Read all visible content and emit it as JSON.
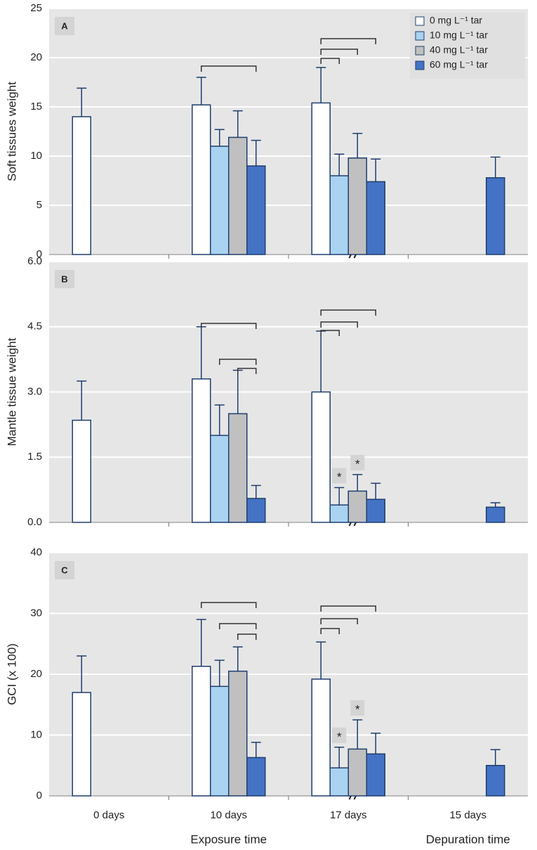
{
  "chart_data": [
    {
      "type": "bar",
      "panel_label": "A",
      "y_label": "Soft tissues weight",
      "legend": "top-right",
      "grid": true,
      "categories": [
        "0 days",
        "10 days",
        "17 days",
        "15 days"
      ],
      "ylim": [
        0,
        25
      ],
      "yticks": [
        0,
        5,
        10,
        15,
        20,
        25
      ],
      "series": [
        {
          "name": "0 mg L⁻¹ tar",
          "color": "#ffffff",
          "values": [
            14,
            15.2,
            15.4,
            null
          ],
          "errors": [
            2.9,
            2.8,
            3.6,
            null
          ]
        },
        {
          "name": "10 mg L⁻¹ tar",
          "color": "#a9d3f1",
          "values": [
            null,
            11.0,
            8.0,
            null
          ],
          "errors": [
            null,
            1.7,
            2.2,
            null
          ]
        },
        {
          "name": "40 mg L⁻¹ tar",
          "color": "#c0c0c0",
          "values": [
            null,
            11.9,
            9.8,
            null
          ],
          "errors": [
            null,
            2.7,
            2.5,
            null
          ]
        },
        {
          "name": "60 mg L⁻¹ tar",
          "color": "#4472c4",
          "values": [
            null,
            9.0,
            7.4,
            7.8
          ],
          "errors": [
            null,
            2.6,
            2.3,
            2.1
          ]
        }
      ]
    },
    {
      "type": "bar",
      "panel_label": "B",
      "y_label": "Mantle tissue weight",
      "grid": true,
      "categories": [
        "0 days",
        "10 days",
        "17 days",
        "15 days"
      ],
      "ylim": [
        0,
        6
      ],
      "yticks": [
        {
          "value": 0,
          "label": "0.0"
        },
        1.5,
        {
          "value": 3,
          "label": "3.0"
        },
        4.5,
        {
          "value": 6,
          "label": "6.0"
        }
      ],
      "series": [
        {
          "name": "0 mg L⁻¹ tar",
          "color": "#ffffff",
          "values": [
            2.35,
            3.3,
            3.0,
            null
          ],
          "errors": [
            0.9,
            1.2,
            1.4,
            null
          ]
        },
        {
          "name": "10 mg L⁻¹ tar",
          "color": "#a9d3f1",
          "values": [
            null,
            2.0,
            0.4,
            null
          ],
          "errors": [
            null,
            0.7,
            0.4,
            null
          ],
          "significance": [
            null,
            null,
            "*",
            null
          ]
        },
        {
          "name": "40 mg L⁻¹ tar",
          "color": "#c0c0c0",
          "values": [
            null,
            2.5,
            0.72,
            null
          ],
          "errors": [
            null,
            1.0,
            0.38,
            null
          ],
          "significance": [
            null,
            null,
            "*",
            null
          ]
        },
        {
          "name": "60 mg L⁻¹ tar",
          "color": "#4472c4",
          "values": [
            null,
            0.55,
            0.53,
            0.35
          ],
          "errors": [
            null,
            0.3,
            0.37,
            0.1
          ]
        }
      ]
    },
    {
      "type": "bar",
      "panel_label": "C",
      "y_label": "GCI (x 100)",
      "grid": true,
      "categories": [
        "0 days",
        "10 days",
        "17 days",
        "15 days"
      ],
      "x_labels": [
        "Exposure time",
        "Depuration time"
      ],
      "ylim": [
        0,
        40
      ],
      "yticks": [
        0,
        10,
        20,
        30,
        40
      ],
      "series": [
        {
          "name": "0 mg L⁻¹ tar",
          "color": "#ffffff",
          "values": [
            17,
            21.3,
            19.2,
            null
          ],
          "errors": [
            6,
            7.7,
            6.1,
            null
          ]
        },
        {
          "name": "10 mg L⁻¹ tar",
          "color": "#a9d3f1",
          "values": [
            null,
            18,
            4.6,
            null
          ],
          "errors": [
            null,
            4.3,
            3.4,
            null
          ],
          "significance": [
            null,
            null,
            "*",
            null
          ]
        },
        {
          "name": "40 mg L⁻¹ tar",
          "color": "#c0c0c0",
          "values": [
            null,
            20.5,
            7.7,
            null
          ],
          "errors": [
            null,
            4,
            4.8,
            null
          ],
          "significance": [
            null,
            null,
            "*",
            null
          ]
        },
        {
          "name": "60 mg L⁻¹ tar",
          "color": "#4472c4",
          "values": [
            null,
            6.3,
            6.9,
            5
          ],
          "errors": [
            null,
            2.5,
            3.4,
            2.6
          ]
        }
      ]
    }
  ]
}
